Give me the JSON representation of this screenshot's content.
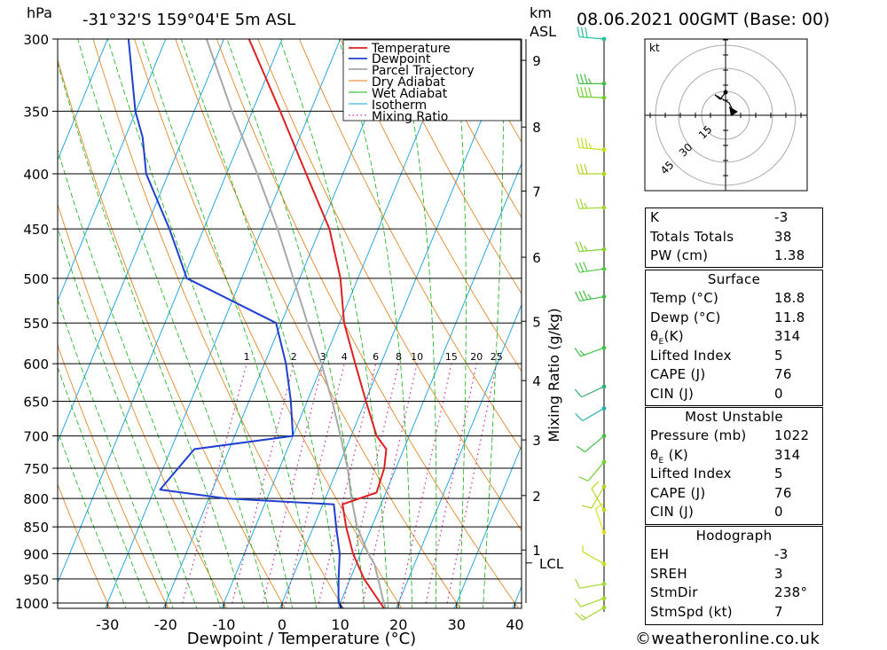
{
  "header": {
    "location": "-31°32'S 159°04'E 5m ASL",
    "datetime": "08.06.2021 00GMT (Base: 00)",
    "hpa_label": "hPa",
    "km_label": "km",
    "asl_label": "ASL"
  },
  "colors": {
    "temperature": "#e02020",
    "dewpoint": "#1f3fd0",
    "parcel": "#a8a8a8",
    "dry_adiabat": "#e07a10",
    "wet_adiabat": "#10b010",
    "isotherm": "#10a0e0",
    "mixing_ratio": "#d020a0"
  },
  "chart_data": {
    "type": "line",
    "title": "-31°32'S 159°04'E 5m ASL",
    "xlabel": "Dewpoint / Temperature (°C)",
    "ylabel": "hPa",
    "xlim": [
      -40,
      40
    ],
    "ylim": [
      1000,
      300
    ],
    "y_scale": "log",
    "skew": true,
    "grid": true,
    "legend_position": "top-right",
    "x_ticks": [
      -30,
      -20,
      -10,
      0,
      10,
      20,
      30,
      40
    ],
    "pressure_levels": [
      300,
      350,
      400,
      450,
      500,
      550,
      600,
      650,
      700,
      750,
      800,
      850,
      900,
      950,
      1000
    ],
    "legend": [
      "Temperature",
      "Dewpoint",
      "Parcel Trajectory",
      "Dry Adiabat",
      "Wet Adiabat",
      "Isotherm",
      "Mixing Ratio"
    ],
    "series": [
      {
        "name": "Temperature",
        "points": [
          [
            1022,
            18.8
          ],
          [
            1000,
            16.9
          ],
          [
            950,
            12.4
          ],
          [
            900,
            8.7
          ],
          [
            850,
            5.6
          ],
          [
            810,
            3.4
          ],
          [
            790,
            8.4
          ],
          [
            750,
            8.0
          ],
          [
            720,
            7.0
          ],
          [
            700,
            4.4
          ],
          [
            650,
            0.1
          ],
          [
            600,
            -4.4
          ],
          [
            550,
            -9.2
          ],
          [
            500,
            -13.0
          ],
          [
            450,
            -18.4
          ],
          [
            400,
            -26.3
          ],
          [
            350,
            -35.2
          ],
          [
            300,
            -45.7
          ]
        ]
      },
      {
        "name": "Dewpoint",
        "points": [
          [
            1022,
            11.8
          ],
          [
            1000,
            9.7
          ],
          [
            950,
            8.0
          ],
          [
            900,
            6.4
          ],
          [
            850,
            3.9
          ],
          [
            810,
            1.9
          ],
          [
            800,
            -17.0
          ],
          [
            785,
            -29.0
          ],
          [
            720,
            -26.0
          ],
          [
            700,
            -10.0
          ],
          [
            650,
            -12.8
          ],
          [
            600,
            -16.3
          ],
          [
            550,
            -20.9
          ],
          [
            500,
            -39.4
          ],
          [
            470,
            -43.2
          ],
          [
            450,
            -45.9
          ],
          [
            400,
            -53.8
          ],
          [
            370,
            -57.0
          ],
          [
            350,
            -60.1
          ],
          [
            300,
            -66.4
          ]
        ]
      },
      {
        "name": "Parcel Trajectory",
        "points": [
          [
            1022,
            18.8
          ],
          [
            1000,
            17.5
          ],
          [
            950,
            14.8
          ],
          [
            920,
            13.1
          ],
          [
            900,
            11.3
          ],
          [
            850,
            7.5
          ],
          [
            800,
            4.5
          ],
          [
            750,
            1.7
          ],
          [
            700,
            -1.8
          ],
          [
            650,
            -5.7
          ],
          [
            600,
            -10.2
          ],
          [
            550,
            -15.5
          ],
          [
            500,
            -21.1
          ],
          [
            450,
            -27.3
          ],
          [
            400,
            -34.7
          ],
          [
            350,
            -43.5
          ],
          [
            300,
            -53.0
          ]
        ]
      }
    ],
    "mixing_ratio_labels": [
      "1",
      "2",
      "3",
      "4",
      "6",
      "8",
      "10",
      "15",
      "20",
      "25"
    ],
    "mixing_ratio_values": [
      1,
      2,
      3,
      4,
      6,
      8,
      10,
      15,
      20,
      25
    ],
    "mixing_ratio_axis_label": "Mixing Ratio (g/kg)",
    "km_ticks": [
      {
        "label": "1",
        "p": 893
      },
      {
        "label": "2",
        "p": 795
      },
      {
        "label": "3",
        "p": 706
      },
      {
        "label": "4",
        "p": 622
      },
      {
        "label": "5",
        "p": 548
      },
      {
        "label": "6",
        "p": 478
      },
      {
        "label": "7",
        "p": 415
      },
      {
        "label": "8",
        "p": 362
      },
      {
        "label": "9",
        "p": 314
      }
    ],
    "lcl_label": "LCL",
    "lcl_pressure": 918
  },
  "hodograph": {
    "unit_label": "kt",
    "ring_labels": [
      "15",
      "30",
      "45"
    ],
    "ring_values": [
      15,
      30,
      45
    ]
  },
  "wind_profile": {
    "winds": [
      {
        "p": 300,
        "dir": 275,
        "spd": 30,
        "color": "#20c0a0"
      },
      {
        "p": 330,
        "dir": 270,
        "spd": 35,
        "color": "#40c040"
      },
      {
        "p": 340,
        "dir": 272,
        "spd": 40,
        "color": "#70d030"
      },
      {
        "p": 380,
        "dir": 275,
        "spd": 35,
        "color": "#c0e020"
      },
      {
        "p": 400,
        "dir": 270,
        "spd": 30,
        "color": "#b0d820"
      },
      {
        "p": 430,
        "dir": 268,
        "spd": 25,
        "color": "#a0d830"
      },
      {
        "p": 470,
        "dir": 265,
        "spd": 25,
        "color": "#80d030"
      },
      {
        "p": 490,
        "dir": 262,
        "spd": 30,
        "color": "#50c840"
      },
      {
        "p": 520,
        "dir": 260,
        "spd": 35,
        "color": "#40c040"
      },
      {
        "p": 580,
        "dir": 250,
        "spd": 15,
        "color": "#40c040"
      },
      {
        "p": 630,
        "dir": 245,
        "spd": 10,
        "color": "#30b070"
      },
      {
        "p": 660,
        "dir": 240,
        "spd": 10,
        "color": "#20b0b0"
      },
      {
        "p": 700,
        "dir": 230,
        "spd": 10,
        "color": "#40c040"
      },
      {
        "p": 740,
        "dir": 220,
        "spd": 10,
        "color": "#70d030"
      },
      {
        "p": 780,
        "dir": 210,
        "spd": 10,
        "color": "#b0d820"
      },
      {
        "p": 820,
        "dir": 330,
        "spd": 10,
        "color": "#c0d820"
      },
      {
        "p": 860,
        "dir": 340,
        "spd": 10,
        "color": "#e0e020"
      },
      {
        "p": 920,
        "dir": 300,
        "spd": 5,
        "color": "#c0e020"
      },
      {
        "p": 960,
        "dir": 260,
        "spd": 10,
        "color": "#a0d830"
      },
      {
        "p": 990,
        "dir": 250,
        "spd": 10,
        "color": "#a0d830"
      },
      {
        "p": 1010,
        "dir": 240,
        "spd": 15,
        "color": "#a0d830"
      }
    ]
  },
  "indices": {
    "rows": [
      {
        "label": "K",
        "value": "-3"
      },
      {
        "label": "Totals Totals",
        "value": "38"
      },
      {
        "label": "PW (cm)",
        "value": "1.38"
      }
    ]
  },
  "surface": {
    "title": "Surface",
    "temp_label": "Temp (°C)",
    "temp_value": "18.8",
    "dewp_label": "Dewp (°C)",
    "dewp_value": "11.8",
    "theta_label": "(K)",
    "theta_value": "314",
    "li_label": "Lifted Index",
    "li_value": "5",
    "cape_label": "CAPE (J)",
    "cape_value": "76",
    "cin_label": "CIN (J)",
    "cin_value": "0"
  },
  "most_unstable": {
    "title": "Most Unstable",
    "pressure_label": "Pressure (mb)",
    "pressure_value": "1022",
    "theta_label": "(K)",
    "theta_value": "314",
    "li_label": "Lifted Index",
    "li_value": "5",
    "cape_label": "CAPE (J)",
    "cape_value": "76",
    "cin_label": "CIN (J)",
    "cin_value": "0"
  },
  "hodo_table": {
    "title": "Hodograph",
    "rows": [
      {
        "label": "EH",
        "value": "-3"
      },
      {
        "label": "SREH",
        "value": "3"
      },
      {
        "label": "StmDir",
        "value": "238°"
      },
      {
        "label": "StmSpd (kt)",
        "value": "7"
      }
    ]
  },
  "footer": {
    "copyright": "©",
    "website": "weatheronline.co.uk"
  }
}
